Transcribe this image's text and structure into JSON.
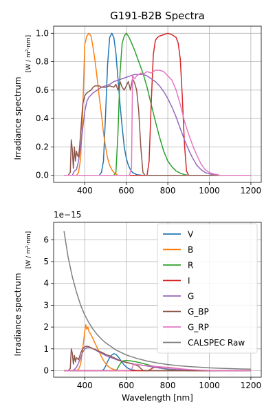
{
  "figure": {
    "colors": {
      "V": "#1f77b4",
      "B": "#ff7f0e",
      "R": "#2ca02c",
      "I": "#d62728",
      "G": "#9467bd",
      "G_BP": "#8c564b",
      "G_RP": "#e377c2",
      "CALSPEC Raw": "#7f7f7f"
    }
  },
  "chart_data": [
    {
      "type": "line",
      "title": "G191-B2B Spectra",
      "ylabel": "Irradiance spectrum",
      "ylabel_units": "[W / m²·nm]",
      "xlabel": "",
      "xlim": [
        250,
        1250
      ],
      "ylim": [
        -0.05,
        1.05
      ],
      "xticks": [
        "400",
        "600",
        "800",
        "1000",
        "1200"
      ],
      "yticks": [
        "0.0",
        "0.2",
        "0.4",
        "0.6",
        "0.8",
        "1.0"
      ],
      "grid": true,
      "series": [
        {
          "name": "V",
          "x": [
            300,
            470,
            480,
            490,
            500,
            510,
            520,
            530,
            540,
            550,
            560,
            570,
            580,
            590,
            600,
            610,
            620,
            630,
            650,
            680,
            700,
            1200
          ],
          "y": [
            0,
            0,
            0.02,
            0.1,
            0.42,
            0.78,
            0.97,
            1.0,
            0.97,
            0.86,
            0.68,
            0.5,
            0.34,
            0.2,
            0.12,
            0.07,
            0.04,
            0.02,
            0.005,
            0,
            0,
            0
          ]
        },
        {
          "name": "B",
          "x": [
            300,
            360,
            370,
            380,
            390,
            400,
            410,
            420,
            430,
            440,
            450,
            460,
            470,
            480,
            490,
            500,
            510,
            520,
            530,
            540,
            550,
            560,
            1200
          ],
          "y": [
            0,
            0,
            0.02,
            0.12,
            0.45,
            0.92,
            0.98,
            1.0,
            0.98,
            0.9,
            0.8,
            0.68,
            0.55,
            0.43,
            0.3,
            0.2,
            0.12,
            0.07,
            0.04,
            0.02,
            0.01,
            0,
            0
          ]
        },
        {
          "name": "R",
          "x": [
            300,
            540,
            550,
            560,
            570,
            580,
            590,
            600,
            610,
            620,
            640,
            660,
            680,
            700,
            720,
            740,
            760,
            780,
            800,
            820,
            840,
            860,
            880,
            900,
            1200
          ],
          "y": [
            0,
            0,
            0.02,
            0.3,
            0.72,
            0.93,
            0.98,
            1.0,
            0.98,
            0.95,
            0.88,
            0.8,
            0.72,
            0.62,
            0.5,
            0.38,
            0.27,
            0.17,
            0.1,
            0.06,
            0.03,
            0.015,
            0.005,
            0,
            0
          ]
        },
        {
          "name": "I",
          "x": [
            300,
            700,
            710,
            720,
            730,
            740,
            750,
            760,
            780,
            800,
            820,
            840,
            850,
            860,
            870,
            880,
            890,
            900,
            1200
          ],
          "y": [
            0,
            0,
            0.1,
            0.5,
            0.85,
            0.95,
            0.97,
            0.98,
            0.99,
            1.0,
            0.99,
            0.97,
            0.93,
            0.82,
            0.55,
            0.22,
            0.03,
            0,
            0
          ]
        },
        {
          "name": "G",
          "x": [
            300,
            340,
            350,
            360,
            370,
            380,
            390,
            400,
            410,
            420,
            440,
            460,
            480,
            500,
            520,
            540,
            560,
            580,
            600,
            620,
            640,
            660,
            680,
            700,
            720,
            740,
            760,
            780,
            800,
            820,
            840,
            860,
            880,
            900,
            920,
            940,
            960,
            980,
            1000,
            1020,
            1040,
            1060,
            1200
          ],
          "y": [
            0,
            0,
            0.03,
            0.04,
            0.1,
            0.2,
            0.33,
            0.45,
            0.52,
            0.55,
            0.58,
            0.6,
            0.62,
            0.63,
            0.64,
            0.66,
            0.67,
            0.68,
            0.69,
            0.7,
            0.71,
            0.71,
            0.71,
            0.7,
            0.68,
            0.66,
            0.63,
            0.59,
            0.54,
            0.48,
            0.41,
            0.33,
            0.25,
            0.18,
            0.12,
            0.07,
            0.04,
            0.02,
            0.01,
            0.005,
            0,
            0,
            0
          ]
        },
        {
          "name": "G_BP",
          "x": [
            300,
            320,
            330,
            335,
            340,
            345,
            350,
            355,
            360,
            365,
            370,
            375,
            380,
            390,
            400,
            410,
            420,
            430,
            440,
            450,
            460,
            470,
            480,
            500,
            520,
            540,
            550,
            560,
            570,
            580,
            590,
            600,
            610,
            620,
            630,
            640,
            650,
            660,
            670,
            680,
            690,
            700,
            1200
          ],
          "y": [
            0,
            0,
            0.02,
            0.25,
            0.18,
            0.05,
            0.2,
            0.1,
            0.17,
            0.14,
            0.13,
            0.2,
            0.3,
            0.5,
            0.56,
            0.58,
            0.59,
            0.6,
            0.62,
            0.63,
            0.63,
            0.63,
            0.62,
            0.62,
            0.63,
            0.62,
            0.64,
            0.6,
            0.66,
            0.62,
            0.6,
            0.63,
            0.66,
            0.6,
            0.68,
            0.65,
            0.6,
            0.45,
            0.2,
            0.02,
            0,
            0,
            0
          ]
        },
        {
          "name": "G_RP",
          "x": [
            300,
            615,
            625,
            630,
            640,
            650,
            660,
            670,
            680,
            690,
            700,
            720,
            740,
            760,
            780,
            800,
            820,
            840,
            860,
            880,
            900,
            920,
            940,
            960,
            980,
            1000,
            1020,
            1040,
            1050,
            1200
          ],
          "y": [
            0,
            0,
            0.05,
            0.7,
            0.68,
            0.7,
            0.71,
            0.72,
            0.71,
            0.72,
            0.73,
            0.72,
            0.74,
            0.74,
            0.73,
            0.7,
            0.67,
            0.6,
            0.5,
            0.38,
            0.29,
            0.21,
            0.14,
            0.08,
            0.04,
            0.02,
            0.01,
            0.005,
            0,
            0
          ]
        }
      ]
    },
    {
      "type": "line",
      "title": "",
      "ylabel": "Irradiance spectrum",
      "ylabel_units": "[W / m²·nm]",
      "xlabel": "Wavelength [nm]",
      "offset_text": "1e−15",
      "xlim": [
        250,
        1250
      ],
      "ylim": [
        -0.3,
        6.8
      ],
      "xticks": [
        "400",
        "600",
        "800",
        "1000",
        "1200"
      ],
      "yticks": [
        "0",
        "1",
        "2",
        "3",
        "4",
        "5",
        "6"
      ],
      "grid": true,
      "legend_position": "top-right",
      "series": [
        {
          "name": "V",
          "x": [
            300,
            480,
            490,
            500,
            510,
            520,
            530,
            540,
            550,
            560,
            570,
            580,
            590,
            600,
            610,
            620,
            640,
            660,
            700,
            1200
          ],
          "y": [
            0,
            0,
            0.04,
            0.2,
            0.42,
            0.6,
            0.72,
            0.78,
            0.75,
            0.65,
            0.52,
            0.38,
            0.26,
            0.17,
            0.1,
            0.06,
            0.02,
            0,
            0,
            0
          ]
        },
        {
          "name": "B",
          "x": [
            300,
            360,
            370,
            380,
            390,
            400,
            405,
            410,
            415,
            420,
            430,
            440,
            450,
            460,
            470,
            480,
            490,
            500,
            510,
            520,
            540,
            560,
            1200
          ],
          "y": [
            0,
            0,
            0.05,
            0.3,
            1.0,
            1.8,
            2.1,
            1.9,
            2.0,
            1.8,
            1.65,
            1.45,
            1.25,
            1.05,
            0.85,
            0.65,
            0.47,
            0.33,
            0.22,
            0.14,
            0.05,
            0,
            0
          ]
        },
        {
          "name": "R",
          "x": [
            300,
            545,
            555,
            565,
            575,
            585,
            600,
            620,
            640,
            660,
            680,
            700,
            720,
            740,
            760,
            780,
            800,
            840,
            880,
            900,
            1200
          ],
          "y": [
            0,
            0,
            0.05,
            0.22,
            0.38,
            0.45,
            0.47,
            0.45,
            0.42,
            0.38,
            0.33,
            0.28,
            0.23,
            0.18,
            0.13,
            0.09,
            0.06,
            0.02,
            0.005,
            0,
            0
          ]
        },
        {
          "name": "I",
          "x": [
            300,
            700,
            710,
            720,
            730,
            750,
            780,
            800,
            820,
            840,
            860,
            870,
            880,
            890,
            900,
            1200
          ],
          "y": [
            0,
            0,
            0.02,
            0.08,
            0.14,
            0.17,
            0.16,
            0.15,
            0.13,
            0.11,
            0.09,
            0.06,
            0.03,
            0.01,
            0,
            0
          ]
        },
        {
          "name": "G",
          "x": [
            300,
            340,
            350,
            360,
            370,
            380,
            390,
            400,
            410,
            420,
            430,
            440,
            450,
            460,
            480,
            500,
            520,
            540,
            560,
            580,
            600,
            620,
            640,
            660,
            680,
            700,
            720,
            740,
            760,
            780,
            800,
            840,
            880,
            920,
            960,
            1000,
            1040,
            1200
          ],
          "y": [
            0,
            0,
            0.05,
            0.15,
            0.35,
            0.6,
            0.85,
            1.0,
            1.05,
            1.07,
            1.05,
            1.0,
            0.95,
            0.9,
            0.8,
            0.7,
            0.62,
            0.55,
            0.48,
            0.43,
            0.38,
            0.34,
            0.3,
            0.27,
            0.24,
            0.21,
            0.18,
            0.15,
            0.12,
            0.1,
            0.08,
            0.05,
            0.03,
            0.015,
            0.005,
            0,
            0,
            0
          ]
        },
        {
          "name": "G_BP",
          "x": [
            300,
            320,
            330,
            335,
            340,
            345,
            350,
            355,
            360,
            365,
            370,
            375,
            380,
            390,
            400,
            410,
            420,
            430,
            440,
            450,
            460,
            470,
            480,
            500,
            520,
            540,
            560,
            580,
            600,
            620,
            640,
            660,
            670,
            680,
            700,
            1200
          ],
          "y": [
            0,
            0,
            0.1,
            1.0,
            0.8,
            0.3,
            0.7,
            0.4,
            0.6,
            0.55,
            0.5,
            0.65,
            0.8,
            1.0,
            1.1,
            1.12,
            1.1,
            1.05,
            1.0,
            0.98,
            0.92,
            0.88,
            0.85,
            0.75,
            0.68,
            0.6,
            0.5,
            0.43,
            0.38,
            0.33,
            0.28,
            0.2,
            0.1,
            0.02,
            0,
            0
          ]
        },
        {
          "name": "G_RP",
          "x": [
            300,
            615,
            625,
            635,
            650,
            680,
            700,
            720,
            740,
            760,
            780,
            800,
            840,
            880,
            920,
            960,
            1000,
            1050,
            1200
          ],
          "y": [
            0,
            0,
            0.05,
            0.3,
            0.29,
            0.25,
            0.23,
            0.22,
            0.2,
            0.18,
            0.16,
            0.14,
            0.1,
            0.07,
            0.045,
            0.025,
            0.012,
            0,
            0
          ]
        },
        {
          "name": "CALSPEC Raw",
          "x": [
            300,
            320,
            340,
            360,
            380,
            400,
            420,
            440,
            460,
            480,
            500,
            550,
            600,
            650,
            700,
            750,
            800,
            850,
            900,
            950,
            1000,
            1050,
            1100,
            1150,
            1200
          ],
          "y": [
            6.4,
            5.2,
            4.3,
            3.6,
            3.0,
            2.55,
            2.2,
            1.9,
            1.65,
            1.45,
            1.28,
            0.95,
            0.72,
            0.56,
            0.44,
            0.35,
            0.28,
            0.23,
            0.19,
            0.16,
            0.13,
            0.11,
            0.095,
            0.08,
            0.07
          ]
        }
      ]
    }
  ]
}
